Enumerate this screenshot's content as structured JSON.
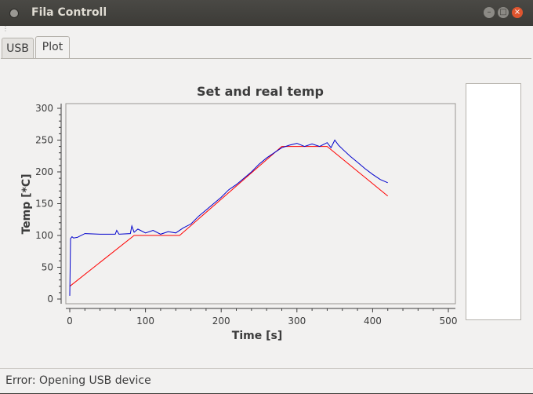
{
  "window": {
    "title": "Fila Controll",
    "min_label": "–",
    "max_label": "□",
    "close_label": "×"
  },
  "tabs": [
    {
      "label": "USB"
    },
    {
      "label": "Plot"
    }
  ],
  "status": {
    "text": "Error: Opening USB device"
  },
  "colors": {
    "set": "#ff0000",
    "real": "#0000cc",
    "titlebar": "#3c3b37",
    "close": "#e0552f"
  },
  "chart_data": {
    "type": "line",
    "title": "Set and real temp",
    "xlabel": "Time [s]",
    "ylabel": "Temp [*C]",
    "xlim": [
      0,
      500
    ],
    "ylim": [
      0,
      300
    ],
    "xticks": [
      0,
      100,
      200,
      300,
      400,
      500
    ],
    "yticks": [
      0,
      50,
      100,
      150,
      200,
      250,
      300
    ],
    "grid": false,
    "series": [
      {
        "color": "#ff0000",
        "x": [
          0,
          85,
          145,
          280,
          340,
          420
        ],
        "y": [
          20,
          100,
          100,
          240,
          240,
          162
        ]
      },
      {
        "color": "#0000cc",
        "x": [
          0,
          1,
          3,
          5,
          10,
          20,
          40,
          60,
          62,
          65,
          80,
          82,
          85,
          90,
          100,
          110,
          120,
          130,
          140,
          150,
          160,
          170,
          180,
          190,
          200,
          210,
          220,
          230,
          240,
          250,
          260,
          270,
          280,
          285,
          290,
          300,
          310,
          320,
          330,
          340,
          345,
          350,
          355,
          360,
          370,
          380,
          390,
          400,
          410,
          420
        ],
        "y": [
          5,
          95,
          98,
          96,
          97,
          103,
          102,
          102,
          108,
          102,
          103,
          115,
          105,
          110,
          104,
          108,
          102,
          106,
          104,
          112,
          118,
          130,
          140,
          150,
          160,
          172,
          180,
          190,
          200,
          212,
          222,
          230,
          238,
          240,
          242,
          245,
          240,
          244,
          240,
          246,
          238,
          250,
          242,
          236,
          225,
          215,
          205,
          196,
          188,
          183
        ]
      }
    ]
  }
}
